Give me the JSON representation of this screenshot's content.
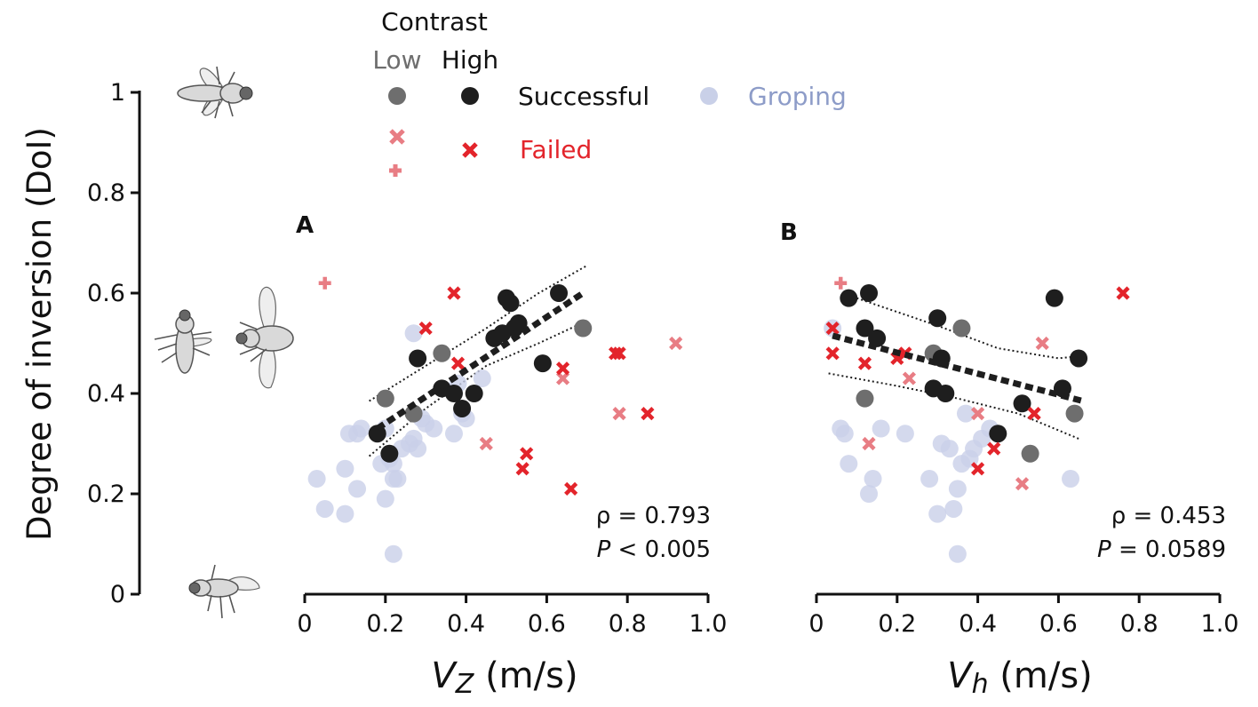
{
  "legend": {
    "contrast_title": "Contrast",
    "low_label": "Low",
    "high_label": "High",
    "successful_label": "Successful",
    "failed_label": "Failed",
    "groping_label": "Groping"
  },
  "colors": {
    "successful_high": "#1e1e1e",
    "successful_low": "#6e6e6e",
    "failed_high": "#e3242b",
    "failed_low": "#e87d84",
    "groping": "#c9d0e8",
    "groping_text": "#8d9cc8",
    "trend": "#1e1e1e"
  },
  "chart_data": {
    "shared_y_axis": {
      "label_prefix": "Degree of inversion (",
      "label_italic": "DoI",
      "label_suffix": ")",
      "ylim": [
        0,
        1
      ],
      "ticks": [
        "0",
        "0.2",
        "0.4",
        "0.6",
        "0.8",
        "1"
      ]
    },
    "panels": [
      {
        "id": "A",
        "type": "scatter",
        "x_label_var": "V",
        "x_label_sub": "Z",
        "x_label_unit": " (m/s)",
        "xlim": [
          0,
          1
        ],
        "x_ticks": [
          "0",
          "0.2",
          "0.4",
          "0.6",
          "0.8",
          "1.0"
        ],
        "stat_rho": "ρ = 0.793",
        "stat_p_italic": "P",
        "stat_p_rest": " < 0.005",
        "trend": {
          "x": [
            0.18,
            0.69
          ],
          "y": [
            0.33,
            0.6
          ]
        },
        "ci_upper": {
          "x": [
            0.16,
            0.3,
            0.45,
            0.58,
            0.7
          ],
          "y": [
            0.385,
            0.455,
            0.53,
            0.6,
            0.655
          ]
        },
        "ci_lower": {
          "x": [
            0.16,
            0.3,
            0.45,
            0.58,
            0.7
          ],
          "y": [
            0.275,
            0.37,
            0.455,
            0.5,
            0.545
          ]
        },
        "successful_high": [
          [
            0.18,
            0.32
          ],
          [
            0.21,
            0.28
          ],
          [
            0.28,
            0.47
          ],
          [
            0.34,
            0.41
          ],
          [
            0.37,
            0.4
          ],
          [
            0.39,
            0.37
          ],
          [
            0.42,
            0.4
          ],
          [
            0.47,
            0.51
          ],
          [
            0.49,
            0.52
          ],
          [
            0.5,
            0.59
          ],
          [
            0.51,
            0.58
          ],
          [
            0.52,
            0.53
          ],
          [
            0.53,
            0.54
          ],
          [
            0.59,
            0.46
          ],
          [
            0.63,
            0.6
          ]
        ],
        "successful_low": [
          [
            0.2,
            0.39
          ],
          [
            0.27,
            0.36
          ],
          [
            0.34,
            0.48
          ],
          [
            0.69,
            0.53
          ]
        ],
        "failed_high": [
          [
            0.3,
            0.53
          ],
          [
            0.37,
            0.6
          ],
          [
            0.38,
            0.46
          ],
          [
            0.54,
            0.25
          ],
          [
            0.55,
            0.28
          ],
          [
            0.64,
            0.45
          ],
          [
            0.66,
            0.21
          ],
          [
            0.77,
            0.48
          ],
          [
            0.78,
            0.48
          ],
          [
            0.85,
            0.36
          ]
        ],
        "failed_low": [
          [
            0.45,
            0.3
          ],
          [
            0.64,
            0.43
          ],
          [
            0.78,
            0.36
          ],
          [
            0.92,
            0.5
          ]
        ],
        "failed_low_plus": [
          [
            0.05,
            0.62
          ]
        ],
        "groping": [
          [
            0.03,
            0.23
          ],
          [
            0.05,
            0.17
          ],
          [
            0.1,
            0.16
          ],
          [
            0.1,
            0.25
          ],
          [
            0.11,
            0.32
          ],
          [
            0.13,
            0.21
          ],
          [
            0.13,
            0.32
          ],
          [
            0.14,
            0.33
          ],
          [
            0.19,
            0.26
          ],
          [
            0.2,
            0.19
          ],
          [
            0.2,
            0.33
          ],
          [
            0.21,
            0.27
          ],
          [
            0.22,
            0.23
          ],
          [
            0.22,
            0.08
          ],
          [
            0.22,
            0.26
          ],
          [
            0.23,
            0.23
          ],
          [
            0.24,
            0.29
          ],
          [
            0.26,
            0.3
          ],
          [
            0.27,
            0.31
          ],
          [
            0.27,
            0.52
          ],
          [
            0.28,
            0.29
          ],
          [
            0.29,
            0.35
          ],
          [
            0.3,
            0.34
          ],
          [
            0.32,
            0.33
          ],
          [
            0.37,
            0.32
          ],
          [
            0.38,
            0.42
          ],
          [
            0.39,
            0.36
          ],
          [
            0.4,
            0.35
          ],
          [
            0.44,
            0.43
          ]
        ]
      },
      {
        "id": "B",
        "type": "scatter",
        "x_label_var": "V",
        "x_label_sub": "h",
        "x_label_unit": " (m/s)",
        "xlim": [
          0,
          1
        ],
        "x_ticks": [
          "0",
          "0.2",
          "0.4",
          "0.6",
          "0.8",
          "1.0"
        ],
        "stat_rho": "ρ = 0.453",
        "stat_p_italic": "P",
        "stat_p_rest": " = 0.0589",
        "trend": {
          "x": [
            0.04,
            0.66
          ],
          "y": [
            0.515,
            0.385
          ]
        },
        "ci_upper": {
          "x": [
            0.1,
            0.3,
            0.45,
            0.6,
            0.66
          ],
          "y": [
            0.59,
            0.535,
            0.49,
            0.47,
            0.475
          ]
        },
        "ci_lower": {
          "x": [
            0.03,
            0.2,
            0.35,
            0.5,
            0.65
          ],
          "y": [
            0.44,
            0.415,
            0.39,
            0.36,
            0.31
          ]
        },
        "successful_high": [
          [
            0.08,
            0.59
          ],
          [
            0.12,
            0.53
          ],
          [
            0.13,
            0.6
          ],
          [
            0.15,
            0.51
          ],
          [
            0.29,
            0.41
          ],
          [
            0.3,
            0.55
          ],
          [
            0.31,
            0.47
          ],
          [
            0.32,
            0.4
          ],
          [
            0.45,
            0.32
          ],
          [
            0.51,
            0.38
          ],
          [
            0.59,
            0.59
          ],
          [
            0.61,
            0.41
          ],
          [
            0.65,
            0.47
          ]
        ],
        "successful_low": [
          [
            0.12,
            0.39
          ],
          [
            0.29,
            0.48
          ],
          [
            0.36,
            0.53
          ],
          [
            0.53,
            0.28
          ],
          [
            0.64,
            0.36
          ]
        ],
        "failed_high": [
          [
            0.04,
            0.53
          ],
          [
            0.04,
            0.48
          ],
          [
            0.12,
            0.46
          ],
          [
            0.2,
            0.47
          ],
          [
            0.22,
            0.48
          ],
          [
            0.4,
            0.25
          ],
          [
            0.44,
            0.29
          ],
          [
            0.54,
            0.36
          ],
          [
            0.76,
            0.6
          ]
        ],
        "failed_low": [
          [
            0.13,
            0.3
          ],
          [
            0.23,
            0.43
          ],
          [
            0.4,
            0.36
          ],
          [
            0.51,
            0.22
          ],
          [
            0.56,
            0.5
          ]
        ],
        "failed_low_plus": [
          [
            0.06,
            0.62
          ]
        ],
        "groping": [
          [
            0.04,
            0.53
          ],
          [
            0.06,
            0.33
          ],
          [
            0.07,
            0.32
          ],
          [
            0.08,
            0.26
          ],
          [
            0.13,
            0.2
          ],
          [
            0.14,
            0.23
          ],
          [
            0.16,
            0.33
          ],
          [
            0.22,
            0.32
          ],
          [
            0.28,
            0.23
          ],
          [
            0.3,
            0.16
          ],
          [
            0.31,
            0.3
          ],
          [
            0.33,
            0.29
          ],
          [
            0.34,
            0.17
          ],
          [
            0.35,
            0.21
          ],
          [
            0.35,
            0.08
          ],
          [
            0.36,
            0.26
          ],
          [
            0.37,
            0.36
          ],
          [
            0.38,
            0.27
          ],
          [
            0.39,
            0.29
          ],
          [
            0.41,
            0.31
          ],
          [
            0.43,
            0.33
          ],
          [
            0.63,
            0.23
          ]
        ]
      }
    ]
  }
}
